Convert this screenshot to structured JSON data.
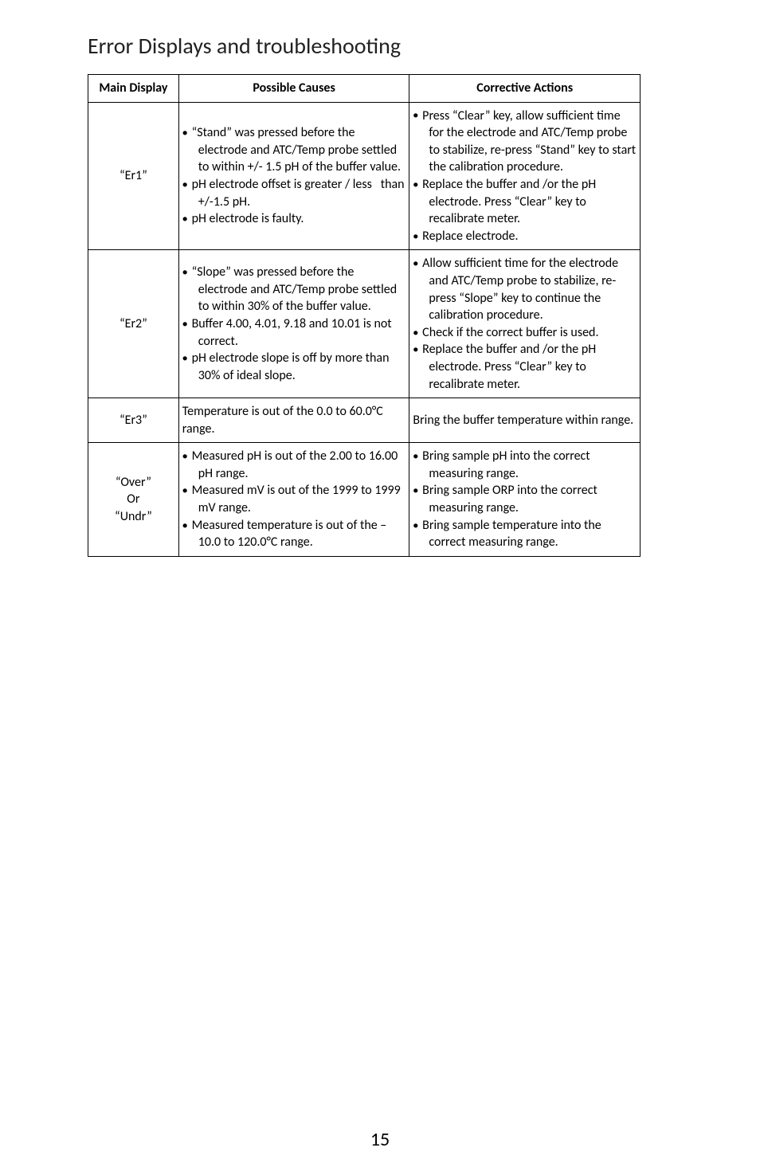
{
  "title": "Error Displays and troubleshooting",
  "columns": {
    "c1": "Main Display",
    "c2": "Possible Causes",
    "c3": "Corrective Actions"
  },
  "rows": [
    {
      "display": "“Er1”",
      "causes": [
        "“Stand” was pressed before the electrode and ATC/Temp probe settled to within +/- 1.5 pH of the buffer value.",
        "pH electrode offset is greater / less   than +/-1.5 pH.",
        "pH electrode is faulty."
      ],
      "actions": [
        "Press “Clear” key, allow sufficient time for the electrode and ATC/Temp probe to stabilize, re-press “Stand” key to start the calibration procedure.",
        "Replace the buffer and /or the pH electrode. Press “Clear” key to recalibrate meter.",
        "Replace electrode."
      ]
    },
    {
      "display": "“Er2”",
      "causes": [
        "“Slope” was pressed before the electrode and ATC/Temp probe settled to within 30% of the buffer value.",
        "Buffer 4.00, 4.01, 9.18 and 10.01 is not correct.",
        "pH electrode slope is off by more than 30% of ideal slope."
      ],
      "actions": [
        "Allow sufficient time for the electrode and ATC/Temp probe to stabilize, re-press “Slope” key to continue the calibration procedure.",
        "Check if the correct buffer is used.",
        "Replace the buffer and /or the pH electrode. Press “Clear” key to recalibrate meter."
      ]
    },
    {
      "display": "“Er3”",
      "causes_plain": "Temperature is out of the 0.0 to 60.0°C range.",
      "actions_plain": "Bring the buffer temperature within range."
    },
    {
      "display": "“Over”\nOr\n“Undr”",
      "causes": [
        "Measured pH is out of the 2.00 to 16.00 pH range.",
        "Measured mV is out of the 1999 to 1999 mV range.",
        "Measured temperature is out of the –10.0 to 120.0°C range."
      ],
      "actions": [
        "Bring sample pH into the correct measuring range.",
        "Bring sample ORP into the correct measuring range.",
        "Bring sample temperature into the correct measuring range."
      ]
    }
  ],
  "page_number": "15",
  "style": {
    "font_family": "Calibri, Arial, sans-serif",
    "title_fontsize": 28,
    "cell_fontsize": 16,
    "pagenum_fontsize": 24,
    "border_color": "#000000",
    "background_color": "#ffffff",
    "text_color": "#000000"
  }
}
